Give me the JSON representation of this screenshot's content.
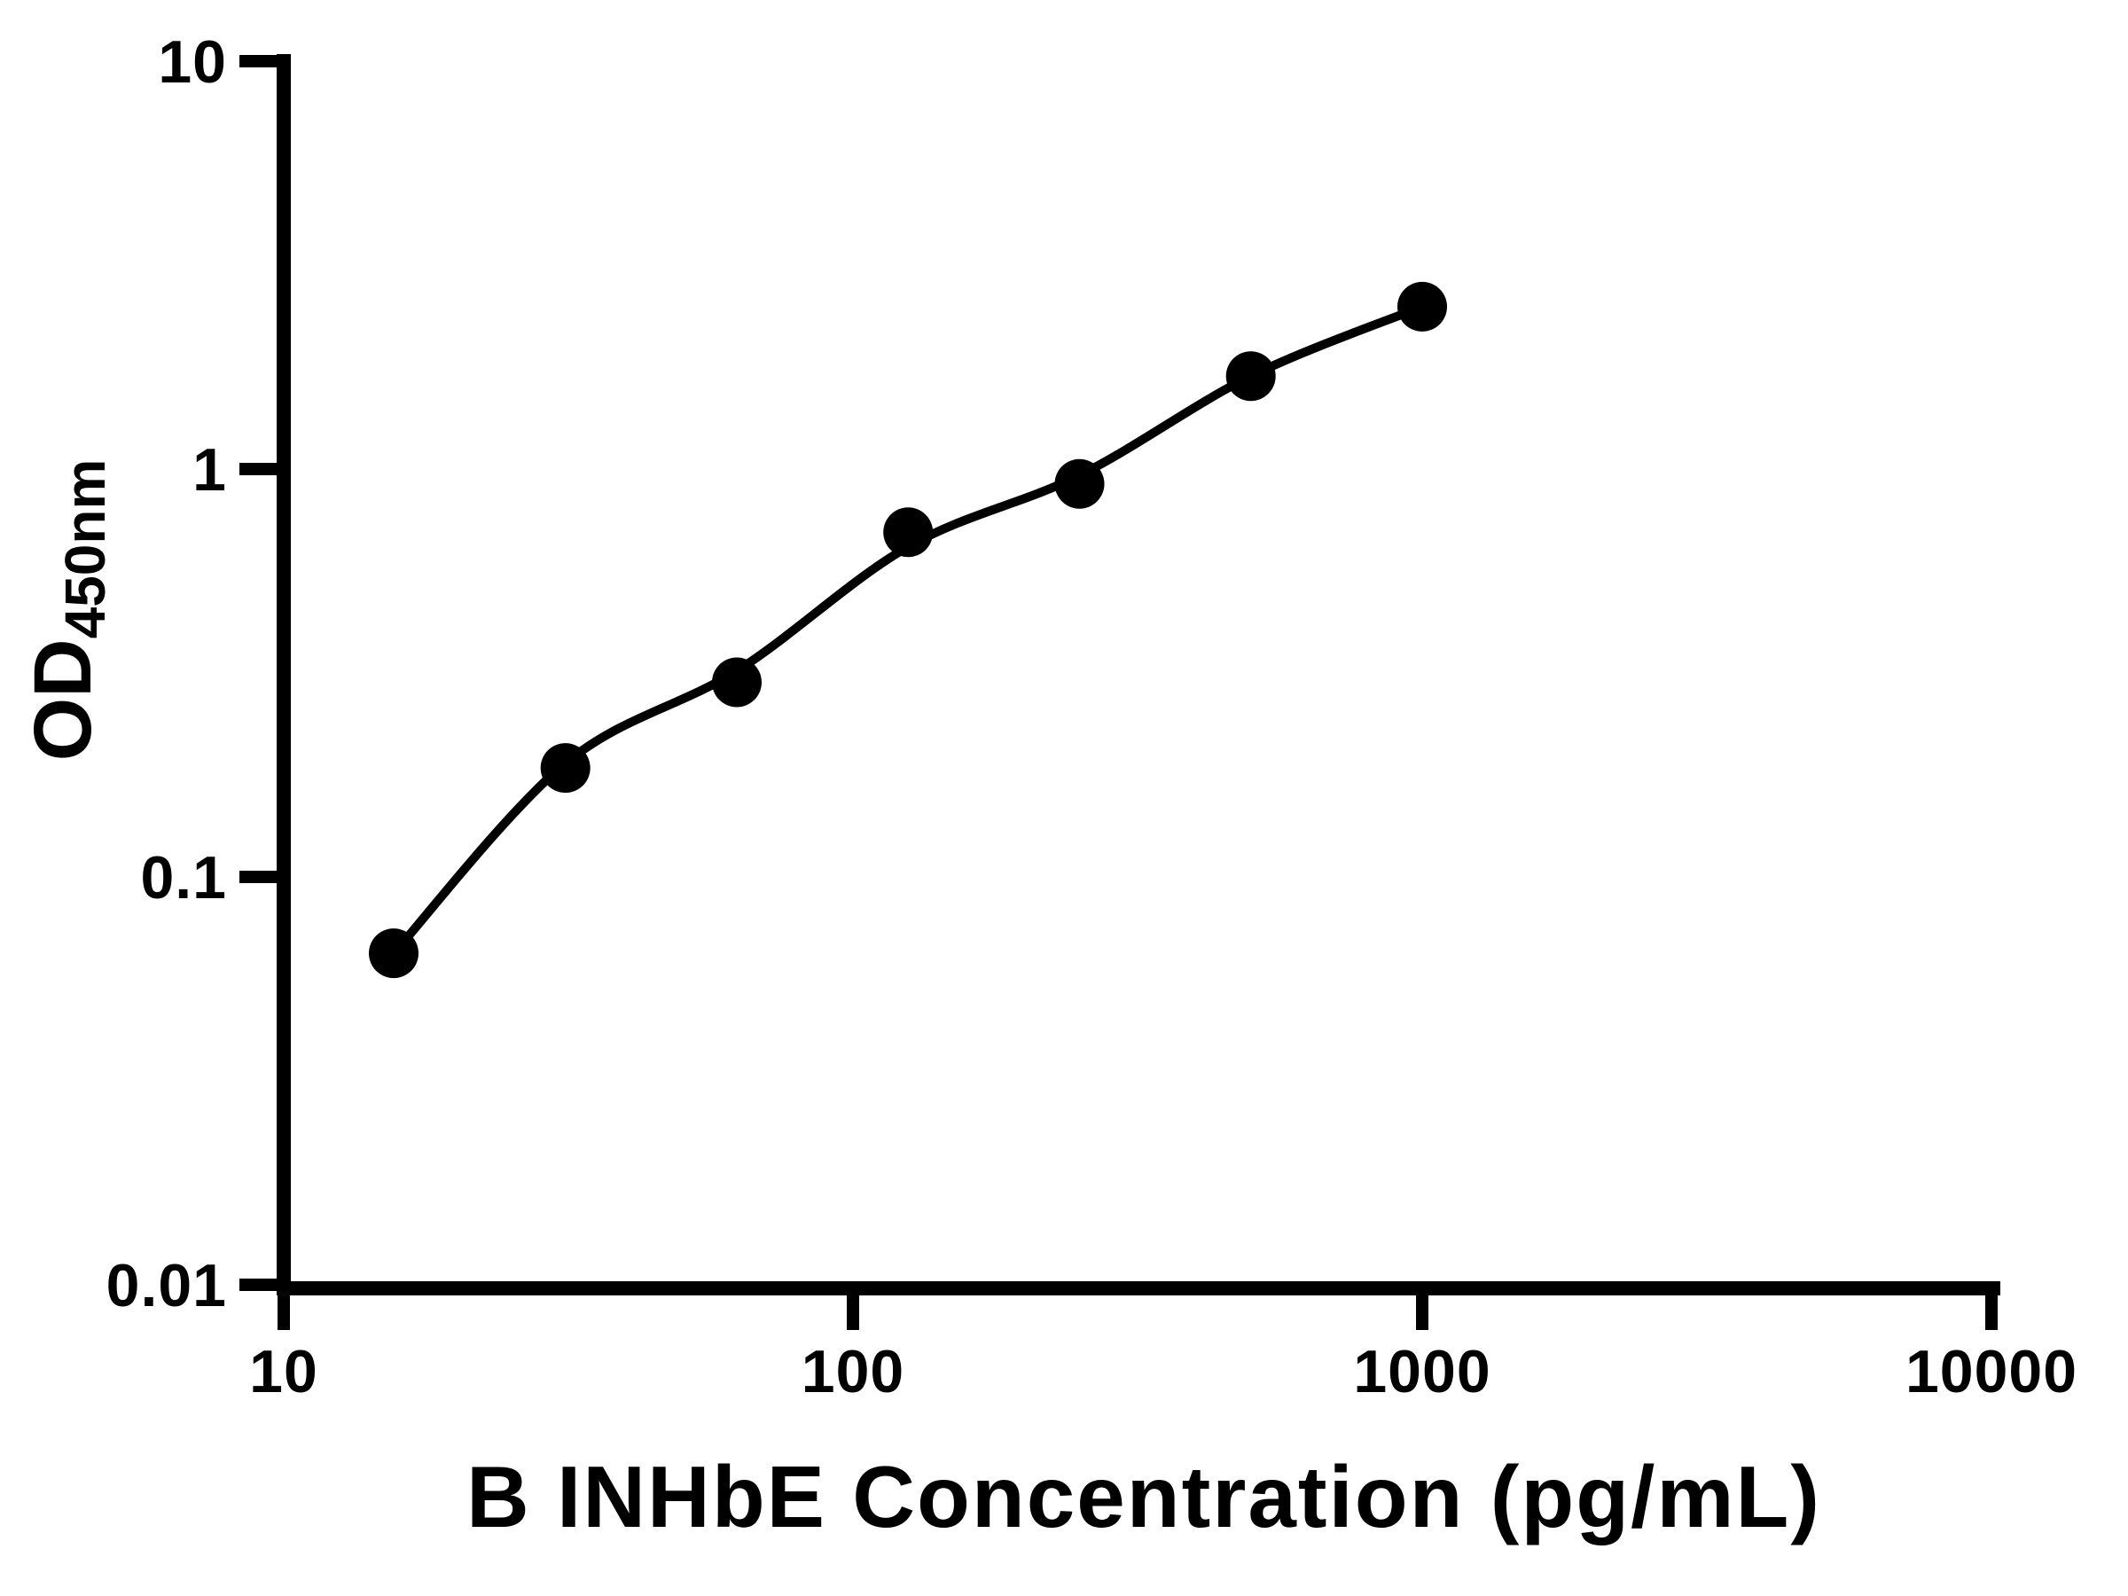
{
  "chart_data": {
    "type": "scatter",
    "title": "",
    "xlabel": "B INHbE Concentration (pg/mL)",
    "ylabel_main": "OD",
    "ylabel_sub": "450nm",
    "x_scale": "log",
    "y_scale": "log",
    "xlim": [
      10,
      10000
    ],
    "ylim": [
      0.01,
      10
    ],
    "grid": false,
    "legend": "none",
    "x_ticks": [
      {
        "value": 10,
        "label": "10"
      },
      {
        "value": 100,
        "label": "100"
      },
      {
        "value": 1000,
        "label": "1000"
      },
      {
        "value": 10000,
        "label": "10000"
      }
    ],
    "y_ticks": [
      {
        "value": 10,
        "label": "10"
      },
      {
        "value": 1,
        "label": "1"
      },
      {
        "value": 0.1,
        "label": "0.1"
      },
      {
        "value": 0.01,
        "label": "0.01"
      }
    ],
    "series": [
      {
        "name": "standard-points",
        "type": "scatter",
        "x": [
          15.6,
          31.25,
          62.5,
          125,
          250,
          500,
          1000
        ],
        "y": [
          0.065,
          0.185,
          0.3,
          0.7,
          0.92,
          1.69,
          2.5
        ]
      },
      {
        "name": "fit-curve",
        "type": "line",
        "x": [
          15.6,
          31.25,
          62.5,
          125,
          250,
          500,
          1000
        ],
        "y": [
          0.065,
          0.19,
          0.32,
          0.645,
          0.965,
          1.69,
          2.5
        ]
      }
    ],
    "colors": {
      "points": "#000000",
      "curve": "#000000",
      "axis": "#000000",
      "background": "#ffffff"
    }
  }
}
